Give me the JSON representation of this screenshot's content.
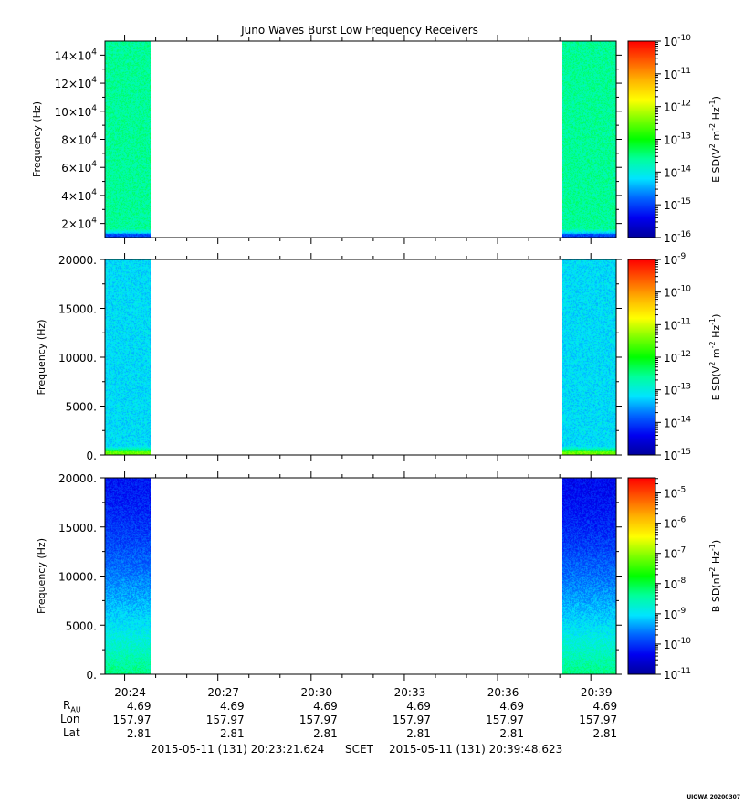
{
  "chart_data": [
    {
      "type": "heatmap",
      "panel": "top",
      "title": "Juno Waves Burst Low Frequency Receivers",
      "ylabel": "Frequency (Hz)",
      "ylim": [
        10000,
        150000
      ],
      "yticks": [
        {
          "value": 20000,
          "mantissa": "2×10",
          "exp": "4"
        },
        {
          "value": 40000,
          "mantissa": "4×10",
          "exp": "4"
        },
        {
          "value": 60000,
          "mantissa": "6×10",
          "exp": "4"
        },
        {
          "value": 80000,
          "mantissa": "8×10",
          "exp": "4"
        },
        {
          "value": 100000,
          "mantissa": "10×10",
          "exp": "4"
        },
        {
          "value": 120000,
          "mantissa": "12×10",
          "exp": "4"
        },
        {
          "value": 140000,
          "mantissa": "14×10",
          "exp": "4"
        }
      ],
      "colorbar": {
        "label": "E SD (V² m⁻² Hz⁻¹)",
        "label_parts": [
          "E SD(V",
          "2",
          " m",
          "-2",
          " Hz",
          "-1",
          ")"
        ],
        "log_min": -16,
        "log_max": -10,
        "ticks": [
          {
            "value": -10,
            "base": "10",
            "exp": "-10"
          },
          {
            "value": -11,
            "base": "10",
            "exp": "-11"
          },
          {
            "value": -12,
            "base": "10",
            "exp": "-12"
          },
          {
            "value": -13,
            "base": "10",
            "exp": "-13"
          },
          {
            "value": -14,
            "base": "10",
            "exp": "-14"
          },
          {
            "value": -15,
            "base": "10",
            "exp": "-15"
          },
          {
            "value": -16,
            "base": "10",
            "exp": "-16"
          }
        ]
      },
      "data_blocks": [
        {
          "x_start": "20:23:22",
          "x_end": "20:24:50",
          "level": -13.6,
          "low_band_level": -15.0
        },
        {
          "x_start": "20:38:05",
          "x_end": "20:39:49",
          "level": -13.6,
          "low_band_level": -15.0
        }
      ]
    },
    {
      "type": "heatmap",
      "panel": "middle",
      "ylabel": "Frequency (Hz)",
      "ylim": [
        0,
        20000
      ],
      "yticks": [
        {
          "value": 0,
          "label": "0."
        },
        {
          "value": 5000,
          "label": "5000."
        },
        {
          "value": 10000,
          "label": "10000."
        },
        {
          "value": 15000,
          "label": "15000."
        },
        {
          "value": 20000,
          "label": "20000."
        }
      ],
      "colorbar": {
        "label": "E SD (V² m⁻² Hz⁻¹)",
        "label_parts": [
          "E SD(V",
          "2",
          " m",
          "-2",
          " Hz",
          "-1",
          ")"
        ],
        "log_min": -15,
        "log_max": -9,
        "ticks": [
          {
            "value": -9,
            "base": "10",
            "exp": "-9"
          },
          {
            "value": -10,
            "base": "10",
            "exp": "-10"
          },
          {
            "value": -11,
            "base": "10",
            "exp": "-11"
          },
          {
            "value": -12,
            "base": "10",
            "exp": "-12"
          },
          {
            "value": -13,
            "base": "10",
            "exp": "-13"
          },
          {
            "value": -14,
            "base": "10",
            "exp": "-14"
          },
          {
            "value": -15,
            "base": "10",
            "exp": "-15"
          }
        ]
      },
      "data_blocks": [
        {
          "x_start": "20:23:22",
          "x_end": "20:24:50",
          "level": -13.2,
          "low_band_level": -11.5
        },
        {
          "x_start": "20:38:05",
          "x_end": "20:39:49",
          "level": -13.2,
          "low_band_level": -11.5
        }
      ]
    },
    {
      "type": "heatmap",
      "panel": "bottom",
      "ylabel": "Frequency (Hz)",
      "ylim": [
        0,
        20000
      ],
      "yticks": [
        {
          "value": 0,
          "label": "0."
        },
        {
          "value": 5000,
          "label": "5000."
        },
        {
          "value": 10000,
          "label": "10000."
        },
        {
          "value": 15000,
          "label": "15000."
        },
        {
          "value": 20000,
          "label": "20000."
        }
      ],
      "colorbar": {
        "label": "B SD (nT² Hz⁻¹)",
        "label_parts": [
          "B SD(nT",
          "2",
          " Hz",
          "-1",
          ")"
        ],
        "log_min": -11,
        "log_max": -4.5,
        "ticks": [
          {
            "value": -5,
            "base": "10",
            "exp": "-5"
          },
          {
            "value": -6,
            "base": "10",
            "exp": "-6"
          },
          {
            "value": -7,
            "base": "10",
            "exp": "-7"
          },
          {
            "value": -8,
            "base": "10",
            "exp": "-8"
          },
          {
            "value": -9,
            "base": "10",
            "exp": "-9"
          },
          {
            "value": -10,
            "base": "10",
            "exp": "-10"
          },
          {
            "value": -11,
            "base": "10",
            "exp": "-11"
          }
        ]
      },
      "data_blocks": [
        {
          "x_start": "20:23:22",
          "x_end": "20:24:50",
          "level_top": -10.2,
          "level_bottom": -8.3
        },
        {
          "x_start": "20:38:05",
          "x_end": "20:39:49",
          "level_top": -10.3,
          "level_bottom": -8.3
        }
      ]
    }
  ],
  "time_axis": {
    "xlim": [
      "20:23:22",
      "20:39:49"
    ],
    "ticks": [
      "20:24",
      "20:27",
      "20:30",
      "20:33",
      "20:36",
      "20:39"
    ],
    "minor_ticks": [
      "20:25",
      "20:26",
      "20:28",
      "20:29",
      "20:31",
      "20:32",
      "20:34",
      "20:35",
      "20:37",
      "20:38"
    ]
  },
  "ephemeris": {
    "rows": [
      {
        "label": "R",
        "label_sub": "AU",
        "values": [
          "4.69",
          "4.69",
          "4.69",
          "4.69",
          "4.69",
          "4.69"
        ]
      },
      {
        "label": "Lon",
        "values": [
          "157.97",
          "157.97",
          "157.97",
          "157.97",
          "157.97",
          "157.97"
        ]
      },
      {
        "label": "Lat",
        "values": [
          "2.81",
          "2.81",
          "2.81",
          "2.81",
          "2.81",
          "2.81"
        ]
      }
    ]
  },
  "time_range": {
    "start": "2015-05-11 (131) 20:23:21.624",
    "mid": "SCET",
    "end": "2015-05-11 (131) 20:39:48.623"
  },
  "footer": {
    "stamp": "UIOWA 20200307"
  }
}
